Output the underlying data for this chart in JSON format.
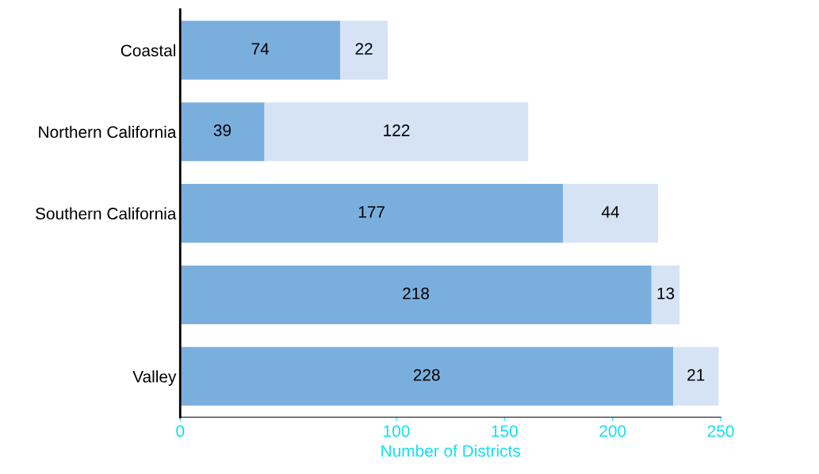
{
  "chart_data": {
    "type": "bar",
    "orientation": "horizontal",
    "stacked": true,
    "data_labels": true,
    "categories": [
      "Coastal",
      "Northern California",
      "Southern California",
      null,
      "Valley"
    ],
    "series": [
      {
        "color": "#7aafdd",
        "values": [
          74,
          39,
          177,
          218,
          228
        ]
      },
      {
        "color": "#d5e3f5",
        "values": [
          22,
          122,
          44,
          13,
          21
        ]
      }
    ],
    "xlabel": "Number of Districts",
    "xlim": [
      0,
      250
    ],
    "xticks": [
      0,
      100,
      150,
      200,
      250
    ],
    "grid": false
  }
}
